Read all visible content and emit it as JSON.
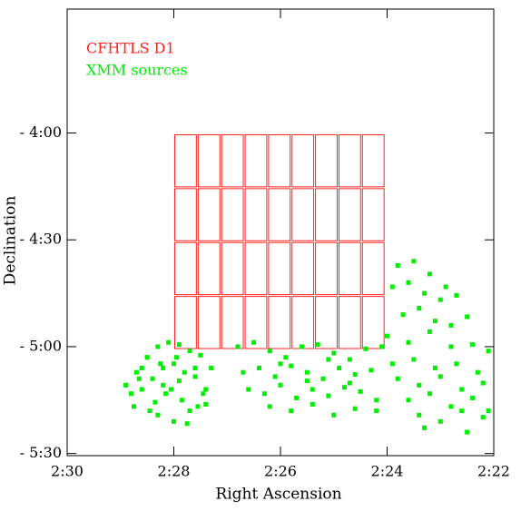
{
  "chart_data": {
    "type": "scatter",
    "x_label": "Right Ascension",
    "y_label": "Declination",
    "xlim": [
      150,
      142
    ],
    "ylim": [
      -3.42,
      -5.51
    ],
    "xticks": [
      {
        "value": 150,
        "label": "2:30"
      },
      {
        "value": 148,
        "label": "2:28"
      },
      {
        "value": 146,
        "label": "2:26"
      },
      {
        "value": 144,
        "label": "2:24"
      },
      {
        "value": 142,
        "label": "2:22"
      }
    ],
    "yticks": [
      {
        "value": -4,
        "label": "- 4:00"
      },
      {
        "value": -4.5,
        "label": "- 4:30"
      },
      {
        "value": -5,
        "label": "- 5:00"
      },
      {
        "value": -5.5,
        "label": "- 5:30"
      }
    ],
    "fields": {
      "name": "CFHTLS D1",
      "color": "#ff2020",
      "ra": [
        148.0,
        144.04
      ],
      "dec": [
        -4.004,
        -5.013
      ],
      "columns": 9,
      "rows": 4
    },
    "series": [
      {
        "name": "XMM sources",
        "color": "#00ee00",
        "x": [
          148.9,
          148.7,
          148.5,
          148.3,
          148.1,
          147.9,
          147.7,
          147.5,
          147.3,
          148.8,
          148.6,
          148.4,
          148.2,
          148.0,
          147.8,
          147.6,
          147.4,
          148.75,
          148.45,
          148.15,
          147.85,
          147.55,
          148.6,
          148.3,
          148.0,
          147.7,
          147.4,
          148.5,
          148.2,
          147.9,
          147.6,
          148.35,
          148.05,
          147.75,
          147.45,
          148.65,
          148.25,
          147.95,
          146.8,
          146.5,
          146.2,
          145.9,
          145.6,
          145.3,
          145.0,
          144.7,
          144.4,
          144.1,
          146.7,
          146.4,
          146.1,
          145.8,
          145.5,
          145.2,
          144.9,
          144.6,
          144.3,
          146.6,
          146.3,
          146.0,
          145.7,
          145.4,
          145.1,
          144.8,
          144.5,
          144.2,
          146.2,
          145.8,
          145.4,
          145.0,
          144.6,
          144.2,
          146.0,
          145.5,
          145.1,
          144.7,
          143.8,
          143.5,
          143.2,
          142.9,
          143.9,
          143.6,
          143.3,
          143.0,
          142.7,
          143.7,
          143.4,
          143.1,
          142.8,
          142.5,
          144.0,
          143.6,
          143.2,
          142.8,
          142.4,
          142.1,
          143.9,
          143.5,
          143.1,
          142.7,
          142.3,
          143.8,
          143.4,
          143.0,
          142.6,
          142.2,
          143.6,
          143.2,
          142.8,
          142.4,
          142.1,
          143.4,
          143.0,
          142.6,
          142.2,
          143.3,
          142.5
        ],
        "y": [
          -5.18,
          -5.12,
          -5.05,
          -5.0,
          -4.98,
          -4.99,
          -5.02,
          -5.04,
          -5.1,
          -5.22,
          -5.2,
          -5.15,
          -5.1,
          -5.08,
          -5.12,
          -5.14,
          -5.2,
          -5.28,
          -5.3,
          -5.22,
          -5.25,
          -5.28,
          -5.1,
          -5.32,
          -5.35,
          -5.3,
          -5.27,
          -5.05,
          -5.18,
          -5.16,
          -5.1,
          -5.26,
          -5.2,
          -5.36,
          -5.22,
          -5.15,
          -5.08,
          -5.05,
          -5.0,
          -4.98,
          -5.02,
          -5.05,
          -5.0,
          -4.99,
          -5.03,
          -5.06,
          -5.01,
          -5.0,
          -5.12,
          -5.1,
          -5.14,
          -5.09,
          -5.12,
          -5.15,
          -5.1,
          -5.13,
          -5.11,
          -5.2,
          -5.22,
          -5.18,
          -5.24,
          -5.2,
          -5.23,
          -5.19,
          -5.21,
          -5.25,
          -5.28,
          -5.3,
          -5.27,
          -5.32,
          -5.29,
          -5.3,
          -5.08,
          -5.16,
          -5.06,
          -5.17,
          -4.62,
          -4.6,
          -4.66,
          -4.72,
          -4.72,
          -4.7,
          -4.75,
          -4.78,
          -4.76,
          -4.85,
          -4.82,
          -4.88,
          -4.9,
          -4.86,
          -4.95,
          -4.98,
          -4.93,
          -5.0,
          -4.99,
          -5.02,
          -5.08,
          -5.06,
          -5.1,
          -5.08,
          -5.12,
          -5.15,
          -5.18,
          -5.14,
          -5.2,
          -5.17,
          -5.25,
          -5.22,
          -5.28,
          -5.24,
          -5.3,
          -5.32,
          -5.35,
          -5.3,
          -5.33,
          -5.38,
          -5.4
        ]
      }
    ]
  }
}
